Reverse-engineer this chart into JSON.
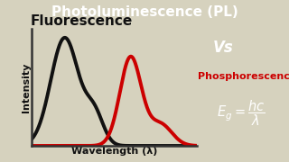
{
  "title": "Photoluminescence (PL)",
  "title_bg": "#0a0acc",
  "title_color": "#ffffff",
  "bg_color": "#d6d2be",
  "fluorescence_label": "Fluorescence",
  "phosphorescence_label": "Phosphorescence",
  "vs_label": "Vs",
  "vs_bg": "#8b1a3a",
  "vs_color": "#ffffff",
  "formula_bg": "#6633bb",
  "formula_color": "#ffffff",
  "xlabel": "Wavelength (λ)",
  "ylabel": "Intensity",
  "fluor_color": "#111111",
  "phos_color": "#cc0000",
  "title_fontsize": 11,
  "fluor_label_fontsize": 11,
  "phos_label_fontsize": 8,
  "vs_fontsize": 12,
  "formula_fontsize": 9,
  "axis_label_fontsize": 7
}
